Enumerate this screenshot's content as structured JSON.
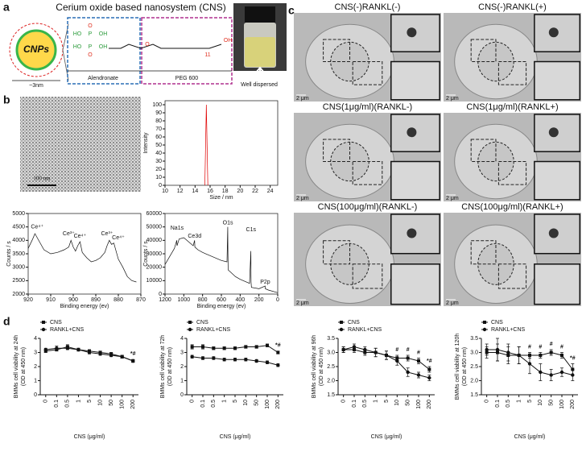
{
  "panel_a": {
    "letter": "a",
    "title": "Cerium oxide based nanosystem (CNS)",
    "core": "CNPs",
    "size": "~3nm",
    "ligand_labels": [
      "HO",
      "P",
      "OH",
      "HO",
      "P",
      "OH",
      "O",
      "O",
      "O",
      "11",
      "OH"
    ],
    "alendronate": "Alendronate",
    "peg": "PEG 600",
    "photo_caption": "Well dispersed"
  },
  "panel_b": {
    "letter": "b",
    "scale_bar": "100 nm",
    "charts": [
      {
        "type": "line",
        "x": [
          15.3,
          15.5,
          15.7
        ],
        "values": [
          0,
          100,
          0
        ],
        "color": "#e00000",
        "xlim": [
          10,
          25
        ],
        "xticks": [
          10,
          12,
          14,
          16,
          18,
          20,
          22,
          24
        ],
        "ylim": [
          0,
          105
        ],
        "yticks": [
          0,
          10,
          20,
          30,
          40,
          50,
          60,
          70,
          80,
          90,
          100
        ],
        "xlabel": "Size / nm",
        "ylabel": "Intensity"
      },
      {
        "type": "line",
        "x": [
          920,
          918,
          917,
          915,
          913,
          910,
          907,
          904,
          902,
          901,
          900,
          899,
          898,
          897,
          896,
          894,
          892,
          890,
          888,
          886,
          885,
          884,
          883,
          882,
          881,
          880,
          878,
          876,
          874,
          872
        ],
        "values": [
          3700,
          4050,
          4250,
          3950,
          3650,
          3500,
          3550,
          3650,
          3750,
          4000,
          3750,
          3600,
          3800,
          3950,
          3550,
          3350,
          3200,
          3250,
          3350,
          3550,
          3800,
          4000,
          3850,
          3900,
          3600,
          3300,
          3000,
          2650,
          2500,
          2450
        ],
        "color": "#111111",
        "xlim": [
          920,
          870
        ],
        "xticks": [
          920,
          910,
          900,
          890,
          880,
          870
        ],
        "ylim": [
          2000,
          5000
        ],
        "yticks": [
          2000,
          2500,
          3000,
          3500,
          4000,
          4500,
          5000
        ],
        "xlabel": "Binding energy (ev)",
        "ylabel": "Counts / s",
        "annotations": [
          {
            "label": "Ce⁴⁺",
            "x": 916,
            "y": 4500
          },
          {
            "label": "Ce³⁺",
            "x": 902,
            "y": 4250
          },
          {
            "label": "Ce⁴⁺",
            "x": 897,
            "y": 4150
          },
          {
            "label": "Ce³⁺",
            "x": 885,
            "y": 4250
          },
          {
            "label": "Ce⁴⁺",
            "x": 880,
            "y": 4100
          }
        ]
      },
      {
        "type": "line",
        "x": [
          1200,
          1150,
          1100,
          1075,
          1072,
          1050,
          1000,
          950,
          900,
          885,
          882,
          850,
          800,
          700,
          600,
          540,
          532,
          530,
          528,
          450,
          400,
          300,
          286,
          284,
          280,
          200,
          134,
          132,
          100,
          0
        ],
        "values": [
          22000,
          28000,
          34000,
          40000,
          36000,
          41000,
          42000,
          39000,
          36000,
          40000,
          35000,
          33000,
          31000,
          28000,
          25000,
          24000,
          50000,
          30000,
          18000,
          13000,
          11000,
          8000,
          32000,
          9000,
          5000,
          4000,
          6000,
          4000,
          3000,
          1000
        ],
        "color": "#111111",
        "xlim": [
          1200,
          0
        ],
        "xticks": [
          1200,
          1000,
          800,
          600,
          400,
          200,
          0
        ],
        "ylim": [
          0,
          60000
        ],
        "yticks": [
          0,
          10000,
          20000,
          30000,
          40000,
          50000,
          60000
        ],
        "xlabel": "Binding energy (ev)",
        "ylabel": "Counts / s",
        "annotations": [
          {
            "label": "Na1s",
            "x": 1072,
            "y": 49000
          },
          {
            "label": "Ce3d",
            "x": 885,
            "y": 43000
          },
          {
            "label": "O1s",
            "x": 531,
            "y": 53000
          },
          {
            "label": "C1s",
            "x": 285,
            "y": 48000
          },
          {
            "label": "P2p",
            "x": 133,
            "y": 9000
          }
        ]
      }
    ]
  },
  "panel_c": {
    "letter": "c",
    "images": [
      {
        "title": "CNS(-)RANKL(-)",
        "scale": "2 μm"
      },
      {
        "title": "CNS(-)RANKL(+)",
        "scale": "2 μm"
      },
      {
        "title": "CNS(1μg/ml)(RANKL-)",
        "scale": "2 μm"
      },
      {
        "title": "CNS(1μg/ml)(RANKL+)",
        "scale": "2 μm"
      },
      {
        "title": "CNS(100μg/ml)(RANKL-)",
        "scale": "2 μm"
      },
      {
        "title": "CNS(100μg/ml)(RANKL+)",
        "scale": "2 μm"
      }
    ]
  },
  "panel_d": {
    "letter": "d",
    "charts": [
      {
        "type": "line",
        "categories": [
          "0",
          "0.1",
          "0.5",
          "1",
          "5",
          "10",
          "50",
          "100",
          "200"
        ],
        "series": [
          {
            "name": "CNS",
            "color": "#111111",
            "marker": "square",
            "values": [
              3.1,
              3.2,
              3.4,
              3.2,
              3.1,
              3.0,
              2.9,
              2.7,
              2.4
            ],
            "errors": [
              0.1,
              0.1,
              0.15,
              0.1,
              0.1,
              0.1,
              0.1,
              0.1,
              0.1
            ]
          },
          {
            "name": "RANKL+CNS",
            "color": "#111111",
            "marker": "circle",
            "values": [
              3.2,
              3.3,
              3.3,
              3.2,
              3.0,
              2.9,
              2.8,
              2.7,
              2.4
            ],
            "errors": [
              0.1,
              0.15,
              0.1,
              0.1,
              0.1,
              0.1,
              0.1,
              0.1,
              0.1
            ]
          }
        ],
        "ylim": [
          0,
          4
        ],
        "yticks": [
          0,
          1,
          2,
          3,
          4
        ],
        "ylabel": [
          "BMMs cell viability at 24h",
          "(OD at 450 nm)"
        ],
        "xlabel": "CNS (μg/ml)",
        "sig_marks": [
          null,
          null,
          null,
          null,
          null,
          null,
          null,
          null,
          "*#"
        ]
      },
      {
        "type": "line",
        "categories": [
          "0",
          "0.1",
          "0.5",
          "1",
          "5",
          "10",
          "50",
          "100",
          "200"
        ],
        "series": [
          {
            "name": "CNS",
            "color": "#111111",
            "marker": "square",
            "values": [
              3.4,
              3.4,
              3.3,
              3.3,
              3.3,
              3.4,
              3.4,
              3.5,
              3.0
            ],
            "errors": [
              0.15,
              0.15,
              0.1,
              0.1,
              0.1,
              0.1,
              0.1,
              0.1,
              0.1
            ]
          },
          {
            "name": "RANKL+CNS",
            "color": "#111111",
            "marker": "circle",
            "values": [
              2.7,
              2.6,
              2.6,
              2.5,
              2.5,
              2.5,
              2.4,
              2.3,
              2.1
            ],
            "errors": [
              0.1,
              0.1,
              0.1,
              0.1,
              0.1,
              0.1,
              0.1,
              0.1,
              0.1
            ]
          }
        ],
        "ylim": [
          0,
          4
        ],
        "yticks": [
          0,
          1,
          2,
          3,
          4
        ],
        "ylabel": [
          "BMMs cell viability at 72h",
          "(OD at 450 nm)"
        ],
        "xlabel": "CNS (μg/ml)",
        "sig_marks": [
          null,
          null,
          null,
          null,
          null,
          null,
          null,
          null,
          "*#"
        ]
      },
      {
        "type": "line",
        "categories": [
          "0",
          "0.1",
          "0.5",
          "1",
          "5",
          "10",
          "50",
          "100",
          "200"
        ],
        "series": [
          {
            "name": "CNS",
            "color": "#111111",
            "marker": "square",
            "values": [
              3.1,
              3.1,
              3.0,
              3.0,
              2.9,
              2.8,
              2.8,
              2.7,
              2.4
            ],
            "errors": [
              0.1,
              0.1,
              0.1,
              0.15,
              0.15,
              0.1,
              0.1,
              0.1,
              0.1
            ]
          },
          {
            "name": "RANKL+CNS",
            "color": "#111111",
            "marker": "circle",
            "values": [
              3.1,
              3.2,
              3.1,
              3.0,
              2.9,
              2.7,
              2.3,
              2.2,
              2.1
            ],
            "errors": [
              0.1,
              0.1,
              0.1,
              0.15,
              0.15,
              0.15,
              0.15,
              0.1,
              0.1
            ]
          }
        ],
        "ylim": [
          1.5,
          3.5
        ],
        "yticks": [
          {
            "value": 1.5,
            "label": "1.5"
          },
          {
            "value": 2,
            "label": "2.0"
          },
          {
            "value": 2.5,
            "label": "2.5"
          },
          {
            "value": 3,
            "label": "3.0"
          },
          {
            "value": 3.5,
            "label": "3.5"
          }
        ],
        "ylabel": [
          "BMMs cell viability at 96h",
          "(OD at 450 nm)"
        ],
        "xlabel": "CNS (μg/ml)",
        "sig_marks": [
          null,
          null,
          null,
          null,
          null,
          "#",
          "#",
          "#",
          "*#"
        ]
      },
      {
        "type": "line",
        "categories": [
          "0",
          "0.1",
          "0.5",
          "1",
          "5",
          "10",
          "50",
          "100",
          "200"
        ],
        "series": [
          {
            "name": "CNS",
            "color": "#111111",
            "marker": "square",
            "values": [
              3.0,
              3.0,
              2.9,
              2.9,
              2.9,
              2.9,
              3.0,
              2.9,
              2.4
            ],
            "errors": [
              0.2,
              0.3,
              0.3,
              0.3,
              0.1,
              0.1,
              0.1,
              0.1,
              0.2
            ]
          },
          {
            "name": "RANKL+CNS",
            "color": "#111111",
            "marker": "circle",
            "values": [
              3.1,
              3.1,
              3.0,
              2.9,
              2.6,
              2.3,
              2.2,
              2.3,
              2.2
            ],
            "errors": [
              0.2,
              0.4,
              0.3,
              0.3,
              0.35,
              0.3,
              0.2,
              0.15,
              0.2
            ]
          }
        ],
        "ylim": [
          1.5,
          3.5
        ],
        "yticks": [
          {
            "value": 1.5,
            "label": "1.5"
          },
          {
            "value": 2,
            "label": "2.0"
          },
          {
            "value": 2.5,
            "label": "2.5"
          },
          {
            "value": 3,
            "label": "3.0"
          },
          {
            "value": 3.5,
            "label": "3.5"
          }
        ],
        "ylabel": [
          "BMMs cell viability at 120h",
          "(OD at 450 nm)"
        ],
        "xlabel": "CNS (μg/ml)",
        "sig_marks": [
          null,
          null,
          null,
          null,
          "#",
          "#",
          "#",
          "#",
          "*#"
        ]
      }
    ]
  }
}
